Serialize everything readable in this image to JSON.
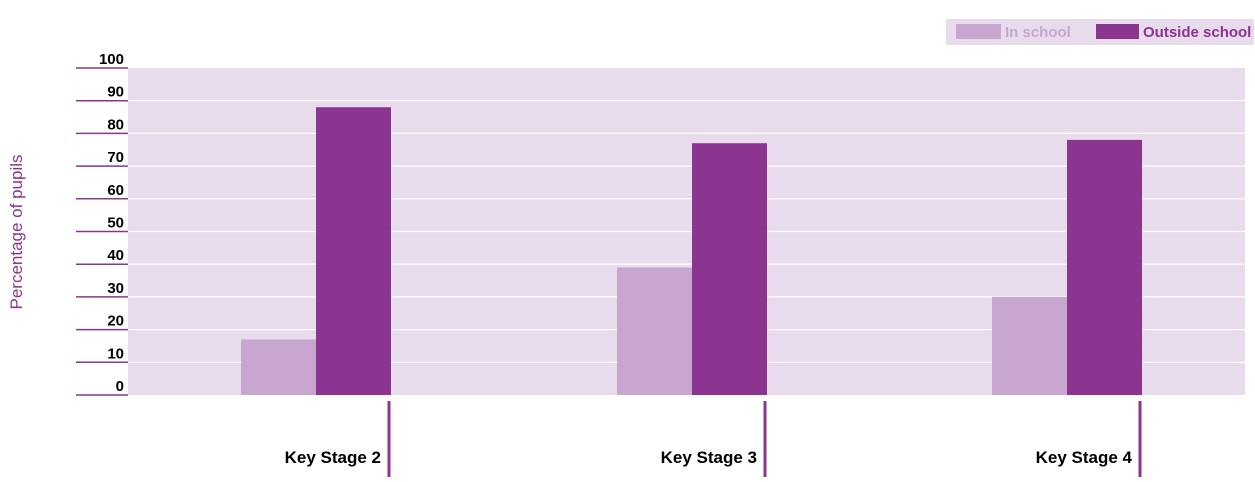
{
  "chart_data": {
    "type": "bar",
    "title": "",
    "xlabel": "",
    "ylabel": "Percentage of pupils",
    "ylim": [
      0,
      100
    ],
    "yticks": [
      0,
      10,
      20,
      30,
      40,
      50,
      60,
      70,
      80,
      90,
      100
    ],
    "grid": true,
    "legend_position": "top-right",
    "categories": [
      "Key Stage 2",
      "Key Stage 3",
      "Key Stage 4"
    ],
    "series": [
      {
        "name": "In school",
        "values": [
          17,
          39,
          30
        ],
        "color": "#c8a6cf"
      },
      {
        "name": "Outside school",
        "values": [
          88,
          77,
          78
        ],
        "color": "#8b3490"
      }
    ],
    "colors": {
      "plot_background": "#e8dbeb",
      "gridline": "#ffffff",
      "axis_accent": "#8b3490",
      "text": "#000000",
      "ylabel": "#8b3490"
    }
  }
}
